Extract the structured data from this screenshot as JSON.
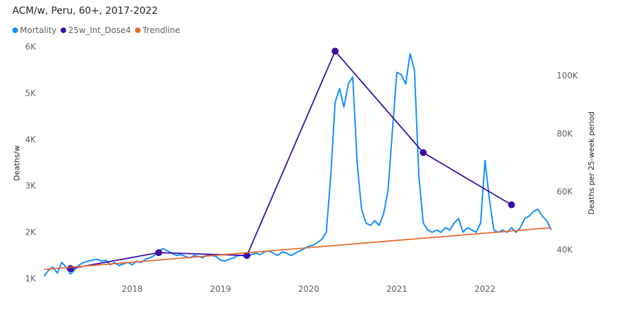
{
  "chart_data": {
    "type": "line",
    "title": "ACM/w, Peru, 60+, 2017-2022",
    "legend": [
      {
        "name": "Mortality",
        "color": "#118DFF"
      },
      {
        "name": "25w_Int_Dose4",
        "color": "#3A0AA6"
      },
      {
        "name": "Trendline",
        "color": "#E96A2A"
      }
    ],
    "legend_position": "top-left",
    "ylabel_left": "Deaths/w",
    "ylabel_right": "Deaths per 25-week period",
    "x_ticks": [
      "2018",
      "2019",
      "2020",
      "2021",
      "2022"
    ],
    "y_left_ticks": [
      "1K",
      "2K",
      "3K",
      "4K",
      "5K",
      "6K"
    ],
    "y_right_ticks": [
      "40K",
      "60K",
      "80K",
      "100K"
    ],
    "xlim": [
      2017.0,
      2022.75
    ],
    "ylim_left": [
      1000,
      6000
    ],
    "ylim_right": [
      30000,
      110000
    ],
    "grid": false,
    "series": [
      {
        "name": "Mortality",
        "axis": "left",
        "color": "#118DFF",
        "x": [
          2017.0,
          2017.05,
          2017.1,
          2017.15,
          2017.2,
          2017.25,
          2017.3,
          2017.35,
          2017.4,
          2017.45,
          2017.5,
          2017.55,
          2017.6,
          2017.65,
          2017.7,
          2017.75,
          2017.8,
          2017.85,
          2017.9,
          2017.95,
          2018.0,
          2018.05,
          2018.1,
          2018.15,
          2018.2,
          2018.25,
          2018.3,
          2018.35,
          2018.4,
          2018.45,
          2018.5,
          2018.55,
          2018.6,
          2018.65,
          2018.7,
          2018.75,
          2018.8,
          2018.85,
          2018.9,
          2018.95,
          2019.0,
          2019.05,
          2019.1,
          2019.15,
          2019.2,
          2019.25,
          2019.3,
          2019.35,
          2019.4,
          2019.45,
          2019.5,
          2019.55,
          2019.6,
          2019.65,
          2019.7,
          2019.75,
          2019.8,
          2019.85,
          2019.9,
          2019.95,
          2020.0,
          2020.05,
          2020.1,
          2020.15,
          2020.2,
          2020.25,
          2020.3,
          2020.35,
          2020.4,
          2020.45,
          2020.5,
          2020.55,
          2020.6,
          2020.65,
          2020.7,
          2020.75,
          2020.8,
          2020.85,
          2020.9,
          2020.95,
          2021.0,
          2021.05,
          2021.1,
          2021.15,
          2021.2,
          2021.25,
          2021.3,
          2021.35,
          2021.4,
          2021.45,
          2021.5,
          2021.55,
          2021.6,
          2021.65,
          2021.7,
          2021.75,
          2021.8,
          2021.85,
          2021.9,
          2021.95,
          2022.0,
          2022.05,
          2022.1,
          2022.15,
          2022.2,
          2022.25,
          2022.3,
          2022.35,
          2022.4,
          2022.45,
          2022.5,
          2022.55,
          2022.6,
          2022.65,
          2022.7,
          2022.75
        ],
        "values": [
          1050,
          1180,
          1250,
          1120,
          1350,
          1250,
          1100,
          1200,
          1300,
          1350,
          1380,
          1400,
          1420,
          1380,
          1400,
          1300,
          1350,
          1280,
          1320,
          1350,
          1300,
          1380,
          1350,
          1420,
          1450,
          1500,
          1600,
          1650,
          1600,
          1550,
          1500,
          1520,
          1480,
          1450,
          1500,
          1480,
          1450,
          1520,
          1500,
          1480,
          1400,
          1380,
          1420,
          1450,
          1500,
          1500,
          1450,
          1520,
          1550,
          1520,
          1580,
          1600,
          1550,
          1500,
          1580,
          1550,
          1500,
          1550,
          1600,
          1650,
          1700,
          1720,
          1780,
          1850,
          2000,
          3200,
          4800,
          5100,
          4700,
          5200,
          5350,
          3500,
          2500,
          2200,
          2150,
          2250,
          2150,
          2400,
          2900,
          4200,
          5450,
          5400,
          5200,
          5850,
          5500,
          3200,
          2200,
          2050,
          2000,
          2050,
          2000,
          2100,
          2050,
          2200,
          2300,
          2000,
          2100,
          2050,
          2000,
          2200,
          3550,
          2700,
          2050,
          2000,
          2050,
          2000,
          2100,
          2000,
          2100,
          2300,
          2350,
          2450,
          2500,
          2350,
          2250,
          2050
        ],
        "x_lookup_note": ""
      },
      {
        "name": "25w_Int_Dose4",
        "axis": "right",
        "color": "#3A0AA6",
        "x": [
          2017.3,
          2018.3,
          2019.3,
          2020.3,
          2021.3,
          2022.3
        ],
        "values": [
          33500,
          39000,
          38000,
          108500,
          73500,
          55500
        ]
      },
      {
        "name": "Trendline",
        "axis": "left",
        "color": "#E96A2A",
        "x": [
          2017.0,
          2022.75
        ],
        "values": [
          1200,
          2100
        ]
      }
    ]
  }
}
